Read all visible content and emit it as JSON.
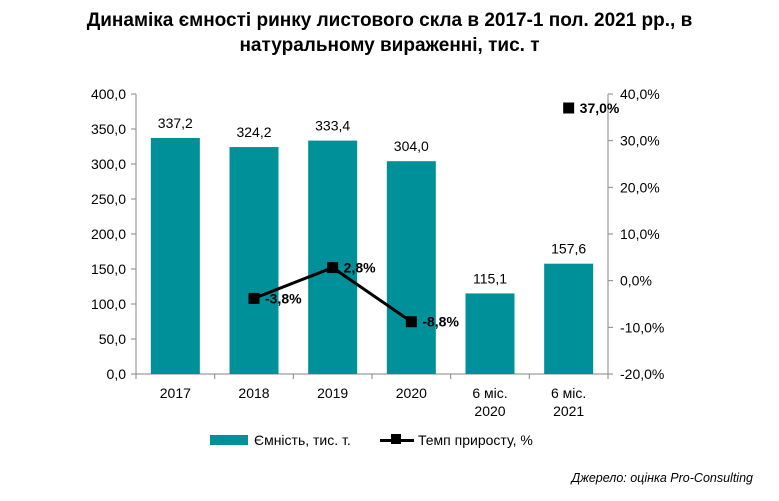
{
  "chart_data": {
    "type": "bar",
    "title_lines": [
      "Динаміка ємності ринку листового скла в 2017-1 пол. 2021 рр., в",
      "натуральному вираженні, тис. т"
    ],
    "categories": [
      [
        "2017"
      ],
      [
        "2018"
      ],
      [
        "2019"
      ],
      [
        "2020"
      ],
      [
        "6 міс.",
        "2020"
      ],
      [
        "6 міс.",
        "2021"
      ]
    ],
    "series": [
      {
        "name": "Ємність, тис. т.",
        "type": "bar",
        "axis": "left",
        "color": "#00909A",
        "values": [
          337.2,
          324.2,
          333.4,
          304.0,
          115.1,
          157.6
        ],
        "labels": [
          "337,2",
          "324,2",
          "333,4",
          "304,0",
          "115,1",
          "157,6"
        ]
      },
      {
        "name": "Темп приросту, %",
        "type": "line",
        "axis": "right",
        "color": "#000000",
        "values": [
          null,
          -3.8,
          2.8,
          -8.8,
          null,
          37.0
        ],
        "labels": [
          null,
          "-3,8%",
          "2,8%",
          "-8,8%",
          null,
          "37,0%"
        ]
      }
    ],
    "y_left": {
      "min": 0,
      "max": 400,
      "step": 50,
      "tick_labels": [
        "0,0",
        "50,0",
        "100,0",
        "150,0",
        "200,0",
        "250,0",
        "300,0",
        "350,0",
        "400,0"
      ]
    },
    "y_right": {
      "min": -20,
      "max": 40,
      "step": 10,
      "tick_labels": [
        "-20,0%",
        "-10,0%",
        "0,0%",
        "10,0%",
        "20,0%",
        "30,0%",
        "40,0%"
      ]
    },
    "grid": false,
    "legend_position": "bottom"
  },
  "source": "Джерело: оцінка Pro-Consulting"
}
